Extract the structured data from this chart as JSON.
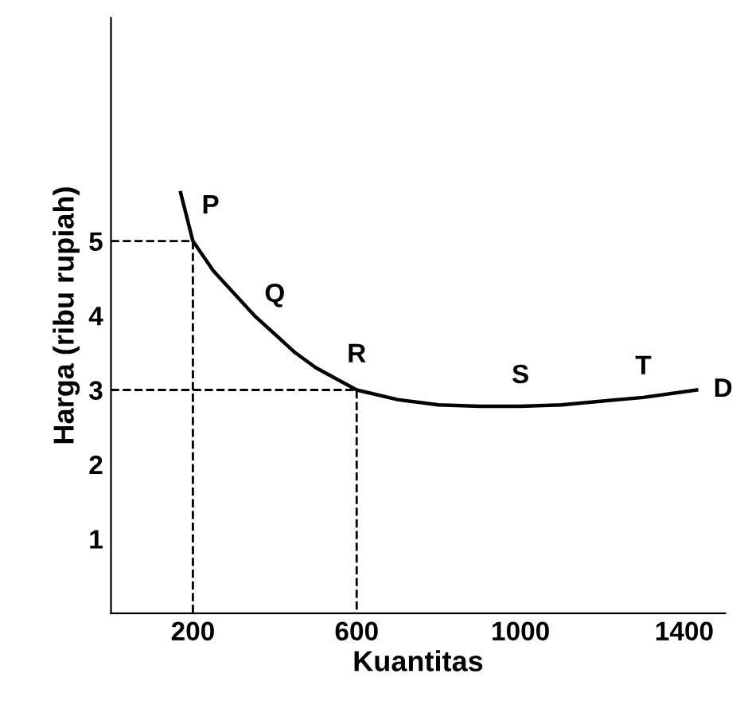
{
  "chart_data": {
    "type": "line",
    "xlabel": "Kuantitas",
    "ylabel": "Harga (ribu rupiah)",
    "xlim": [
      0,
      1500
    ],
    "ylim": [
      0,
      8
    ],
    "xticks": [
      200,
      600,
      1000,
      1400
    ],
    "yticks": [
      1,
      2,
      3,
      4,
      5
    ],
    "grid": false,
    "tick_labels": true,
    "series": [
      {
        "color": "#000000",
        "line_style": "solid",
        "x": [
          170,
          200,
          250,
          300,
          350,
          400,
          450,
          500,
          550,
          600,
          700,
          800,
          900,
          1000,
          1100,
          1200,
          1300,
          1430
        ],
        "values": [
          5.65,
          5.0,
          4.6,
          4.3,
          4.0,
          3.75,
          3.5,
          3.3,
          3.15,
          3.0,
          2.87,
          2.8,
          2.78,
          2.78,
          2.8,
          2.85,
          2.9,
          3.0
        ]
      },
      {
        "color": "#000000",
        "line_style": "dashed",
        "x": [
          0,
          200,
          200
        ],
        "values": [
          5,
          5,
          0
        ]
      },
      {
        "color": "#000000",
        "line_style": "dashed",
        "x": [
          0,
          600,
          600
        ],
        "values": [
          3,
          3,
          0
        ]
      }
    ],
    "annotations": [
      {
        "text": "P",
        "x": 200,
        "y": 5
      },
      {
        "text": "Q",
        "x": 400,
        "y": 3.75
      },
      {
        "text": "R",
        "x": 600,
        "y": 3
      },
      {
        "text": "S",
        "x": 1000,
        "y": 2.78
      },
      {
        "text": "T",
        "x": 1300,
        "y": 2.9
      },
      {
        "text": "D",
        "x": 1430,
        "y": 3.0
      }
    ]
  }
}
